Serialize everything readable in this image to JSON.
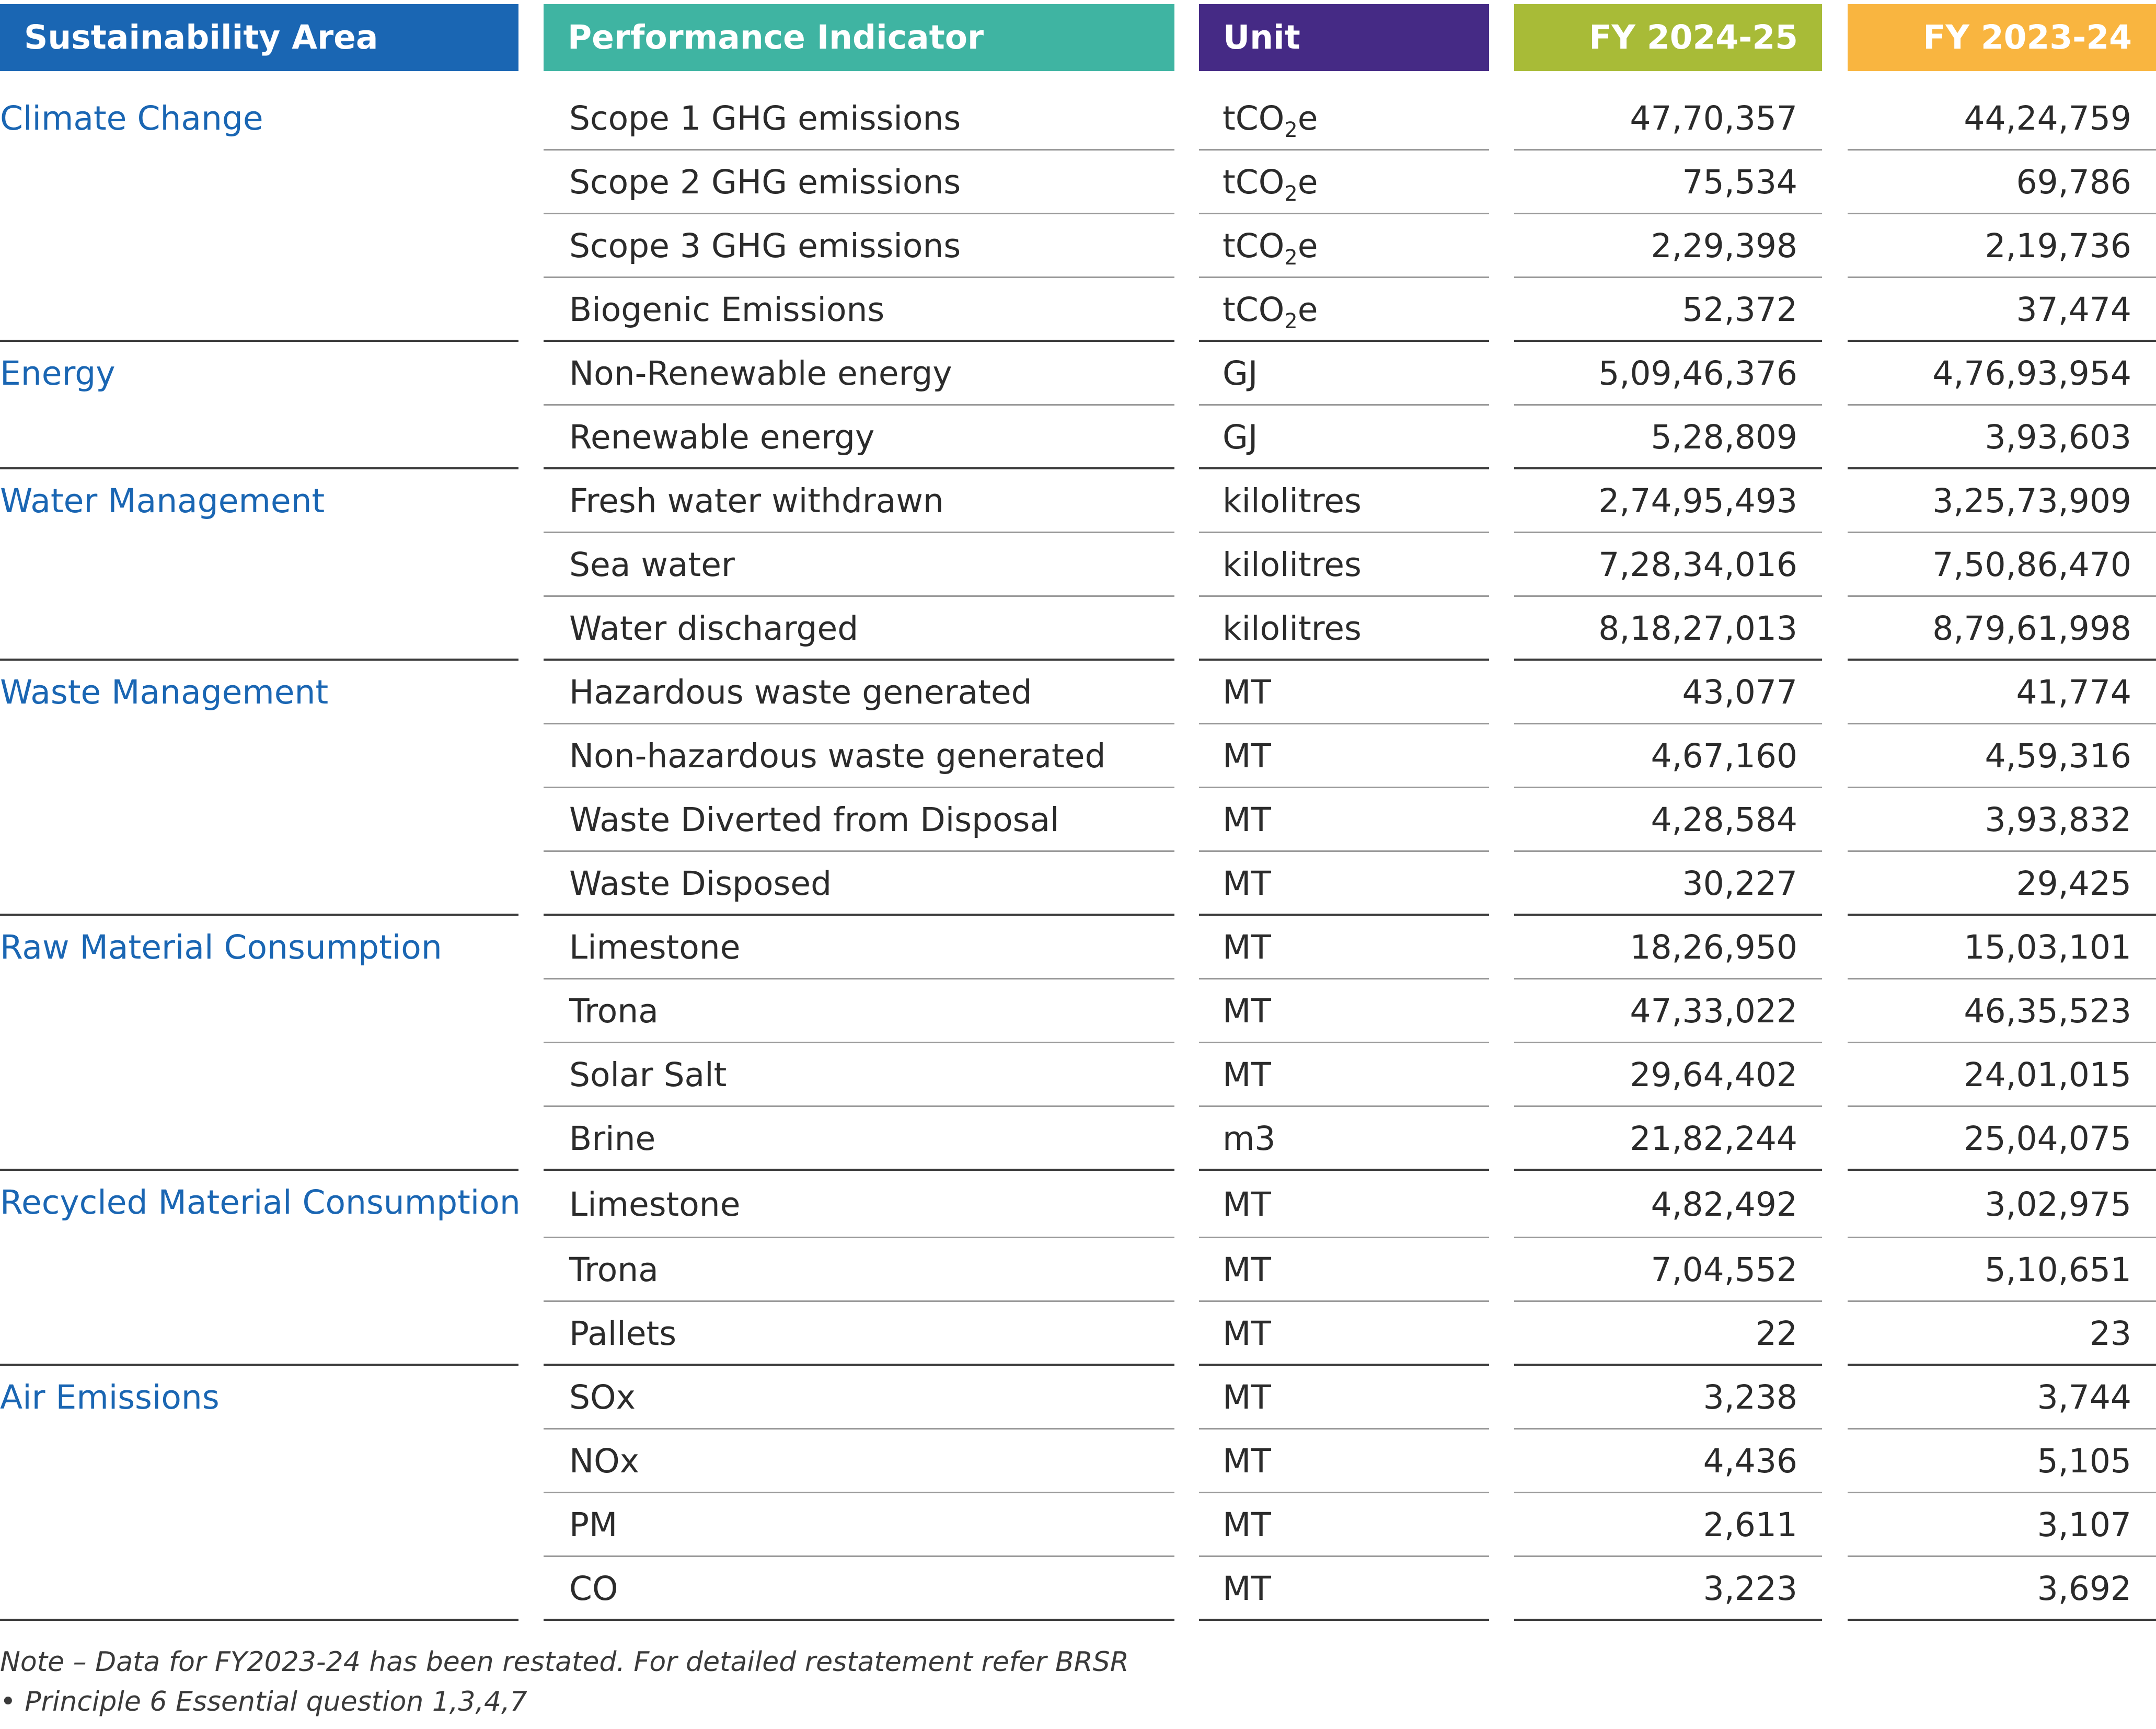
{
  "headers": {
    "area": "Sustainability Area",
    "indicator": "Performance Indicator",
    "unit": "Unit",
    "fy1": "FY 2024-25",
    "fy2": "FY 2023-24"
  },
  "colors": {
    "area_header": "#1a66b3",
    "indicator_header": "#3fb4a2",
    "unit_header": "#452a85",
    "fy1_header": "#a8bb37",
    "fy2_header": "#f9b540",
    "area_text": "#1a66b3"
  },
  "groups": [
    {
      "area": "Climate Change",
      "rows": [
        {
          "indicator": "Scope 1 GHG emissions",
          "unit": "tCO2e",
          "fy1": "47,70,357",
          "fy2": "44,24,759"
        },
        {
          "indicator": "Scope 2 GHG emissions",
          "unit": "tCO2e",
          "fy1": "75,534",
          "fy2": "69,786"
        },
        {
          "indicator": "Scope 3 GHG emissions",
          "unit": "tCO2e",
          "fy1": "2,29,398",
          "fy2": "2,19,736"
        },
        {
          "indicator": "Biogenic Emissions",
          "unit": "tCO2e",
          "fy1": "52,372",
          "fy2": "37,474"
        }
      ]
    },
    {
      "area": "Energy",
      "rows": [
        {
          "indicator": "Non-Renewable energy",
          "unit": "GJ",
          "fy1": "5,09,46,376",
          "fy2": "4,76,93,954"
        },
        {
          "indicator": "Renewable energy",
          "unit": "GJ",
          "fy1": "5,28,809",
          "fy2": "3,93,603"
        }
      ]
    },
    {
      "area": "Water Management",
      "rows": [
        {
          "indicator": "Fresh water withdrawn",
          "unit": "kilolitres",
          "fy1": "2,74,95,493",
          "fy2": "3,25,73,909"
        },
        {
          "indicator": "Sea water",
          "unit": "kilolitres",
          "fy1": "7,28,34,016",
          "fy2": "7,50,86,470"
        },
        {
          "indicator": "Water discharged",
          "unit": "kilolitres",
          "fy1": "8,18,27,013",
          "fy2": "8,79,61,998"
        }
      ]
    },
    {
      "area": "Waste Management",
      "rows": [
        {
          "indicator": "Hazardous waste generated",
          "unit": "MT",
          "fy1": "43,077",
          "fy2": "41,774"
        },
        {
          "indicator": "Non-hazardous waste generated",
          "unit": "MT",
          "fy1": "4,67,160",
          "fy2": "4,59,316"
        },
        {
          "indicator": "Waste Diverted from Disposal",
          "unit": "MT",
          "fy1": "4,28,584",
          "fy2": "3,93,832"
        },
        {
          "indicator": "Waste Disposed",
          "unit": "MT",
          "fy1": "30,227",
          "fy2": "29,425"
        }
      ]
    },
    {
      "area": "Raw Material Consumption",
      "rows": [
        {
          "indicator": "Limestone",
          "unit": "MT",
          "fy1": "18,26,950",
          "fy2": "15,03,101"
        },
        {
          "indicator": "Trona",
          "unit": "MT",
          "fy1": "47,33,022",
          "fy2": "46,35,523"
        },
        {
          "indicator": "Solar Salt",
          "unit": "MT",
          "fy1": "29,64,402",
          "fy2": "24,01,015"
        },
        {
          "indicator": "Brine",
          "unit": "m3",
          "fy1": "21,82,244",
          "fy2": "25,04,075"
        }
      ]
    },
    {
      "area": "Recycled Material Consumption",
      "rows": [
        {
          "indicator": "Limestone",
          "unit": "MT",
          "fy1": "4,82,492",
          "fy2": "3,02,975"
        },
        {
          "indicator": "Trona",
          "unit": "MT",
          "fy1": "7,04,552",
          "fy2": "5,10,651"
        },
        {
          "indicator": "Pallets",
          "unit": "MT",
          "fy1": "22",
          "fy2": "23"
        }
      ]
    },
    {
      "area": "Air Emissions",
      "rows": [
        {
          "indicator": "SOx",
          "unit": "MT",
          "fy1": "3,238",
          "fy2": "3,744"
        },
        {
          "indicator": "NOx",
          "unit": "MT",
          "fy1": "4,436",
          "fy2": "5,105"
        },
        {
          "indicator": "PM",
          "unit": "MT",
          "fy1": "2,611",
          "fy2": "3,107"
        },
        {
          "indicator": "CO",
          "unit": "MT",
          "fy1": "3,223",
          "fy2": "3,692"
        }
      ]
    }
  ],
  "note": {
    "line1": "Note – Data for FY2023-24 has been restated. For detailed restatement refer BRSR",
    "line2": "• Principle 6 Essential question 1,3,4,7"
  }
}
